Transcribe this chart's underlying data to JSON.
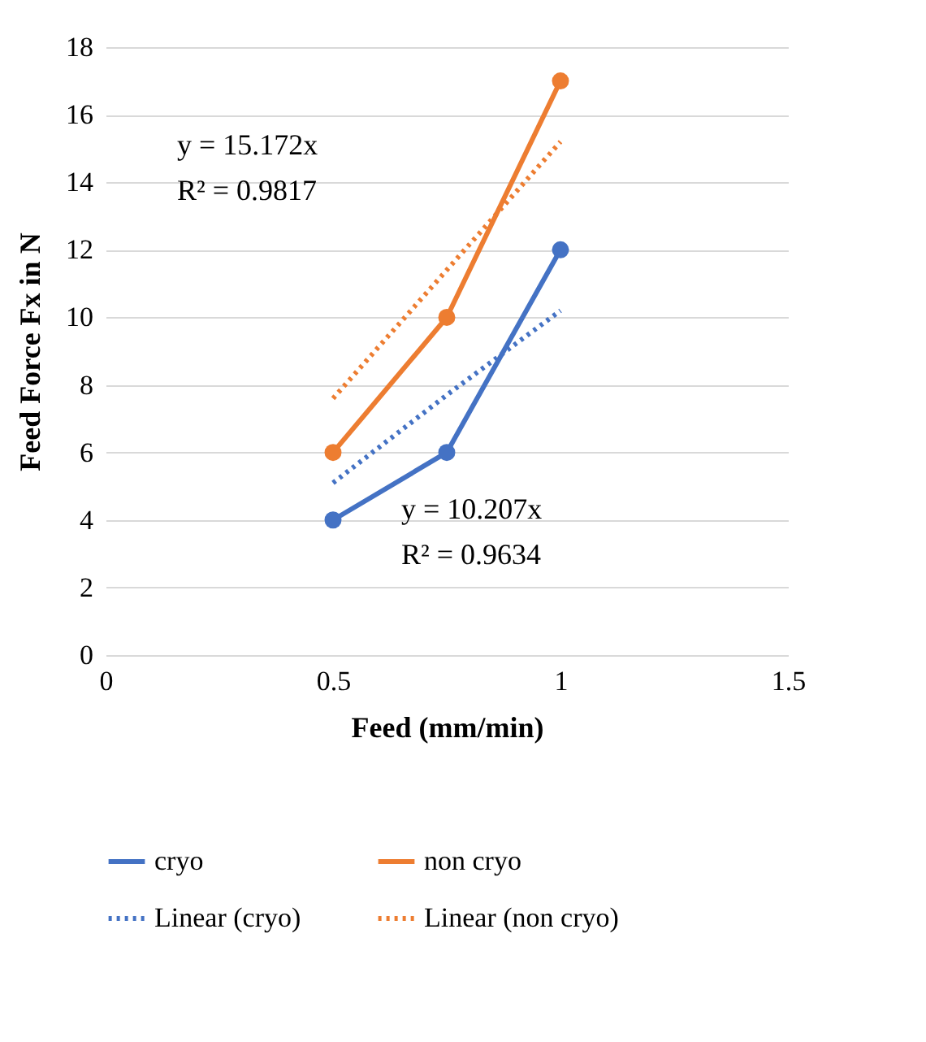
{
  "chart_data": {
    "type": "line",
    "xlabel": "Feed (mm/min)",
    "ylabel": "Feed Force Fx in N",
    "x": [
      0.5,
      0.75,
      1
    ],
    "series": [
      {
        "name": "cryo",
        "color": "#4472c4",
        "values": [
          4,
          6,
          12
        ],
        "marker": "circle",
        "line_style": "solid"
      },
      {
        "name": "non cryo",
        "color": "#ed7d31",
        "values": [
          6,
          10,
          17
        ],
        "marker": "circle",
        "line_style": "solid"
      },
      {
        "name": "Linear (cryo)",
        "color": "#4472c4",
        "values": [
          5.1,
          7.7,
          10.2
        ],
        "marker": "none",
        "line_style": "dotted"
      },
      {
        "name": "Linear (non cryo)",
        "color": "#ed7d31",
        "values": [
          7.6,
          11.4,
          15.2
        ],
        "marker": "none",
        "line_style": "dotted"
      }
    ],
    "annotations": [
      "y = 15.172x",
      "R² = 0.9817",
      "y = 10.207x",
      "R² = 0.9634"
    ],
    "xlim": [
      0,
      1.5
    ],
    "xticks": [
      0,
      0.5,
      1,
      1.5
    ],
    "ylim": [
      0,
      18
    ],
    "yticks": [
      0,
      2,
      4,
      6,
      8,
      10,
      12,
      14,
      16,
      18
    ],
    "grid": "y",
    "legend": "bottom"
  }
}
